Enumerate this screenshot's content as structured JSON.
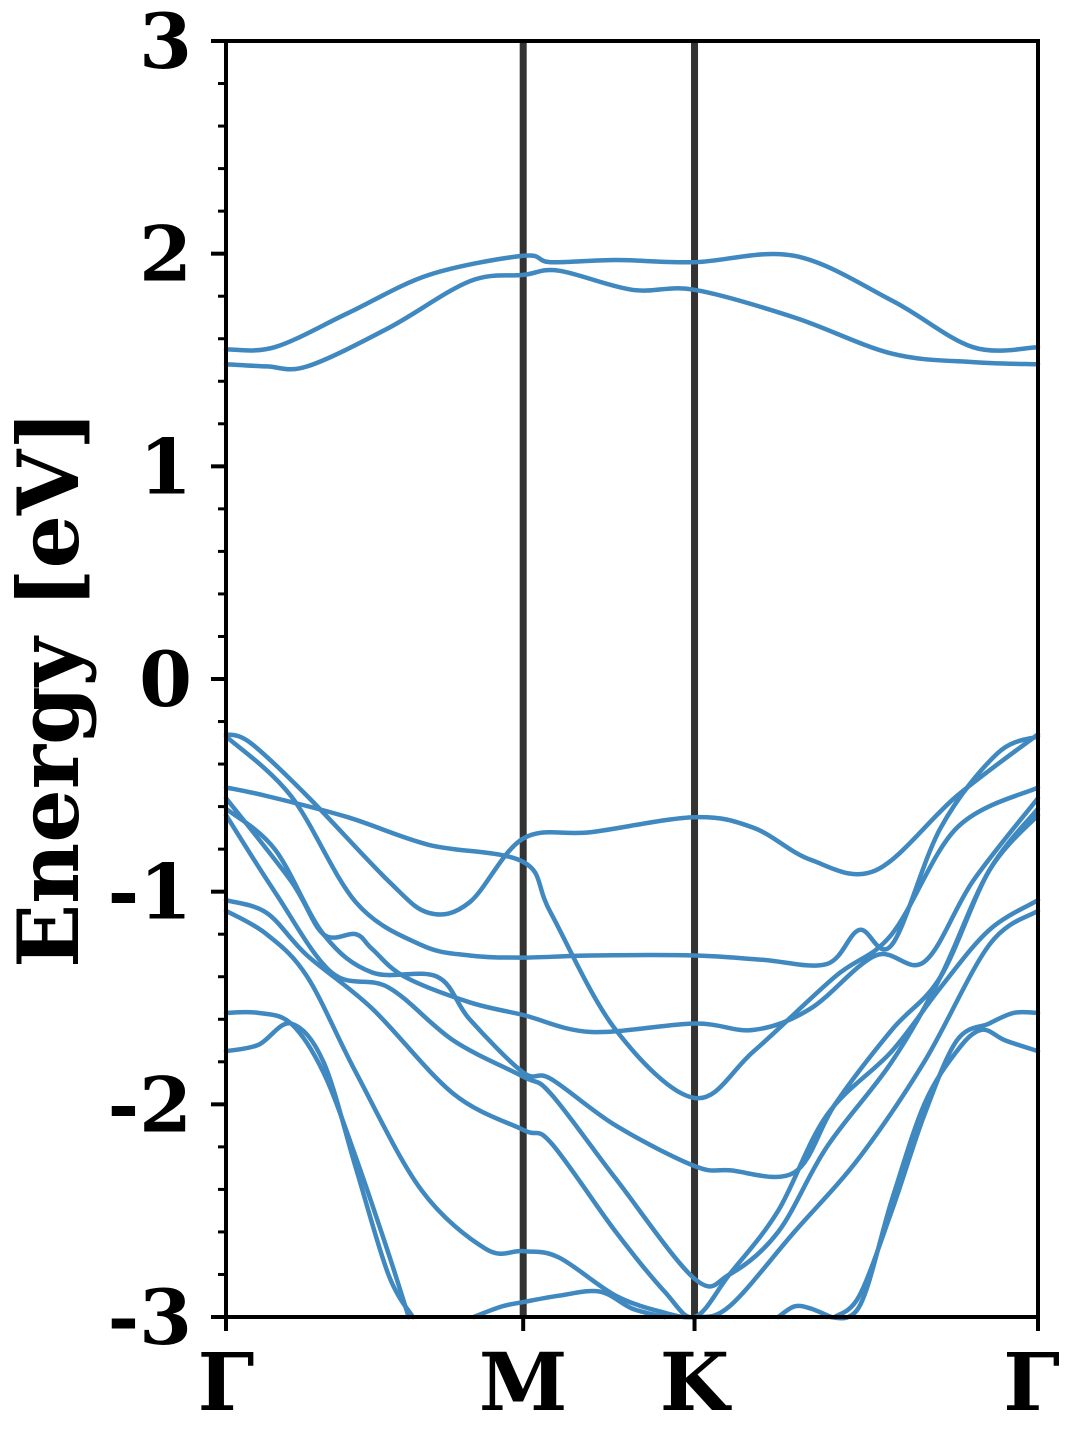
{
  "chart_data": {
    "type": "line",
    "ylabel": "Energy [eV]",
    "xlabel": "",
    "ylim": [
      -3,
      3
    ],
    "yticks": [
      3,
      2,
      1,
      0,
      -1,
      -2,
      -3
    ],
    "ytick_labels": [
      "3",
      "2",
      "1",
      "0",
      "-1",
      "-2",
      "-3"
    ],
    "k_path": [
      {
        "label": "Γ",
        "x": 0.0
      },
      {
        "label": "M",
        "x": 0.366
      },
      {
        "label": "K",
        "x": 0.577
      },
      {
        "label": "Γ",
        "x": 1.0
      }
    ],
    "grid": false,
    "band_color": "#3f88c0",
    "vline_color": "#333333",
    "series": [
      {
        "x": [
          0.0,
          0.06,
          0.15,
          0.25,
          0.366,
          0.4,
          0.48,
          0.577,
          0.7,
          0.82,
          0.92,
          1.0
        ],
        "values": [
          1.55,
          1.56,
          1.72,
          1.9,
          1.99,
          1.96,
          1.97,
          1.96,
          1.99,
          1.78,
          1.56,
          1.56
        ]
      },
      {
        "x": [
          0.0,
          0.05,
          0.1,
          0.2,
          0.3,
          0.366,
          0.41,
          0.5,
          0.577,
          0.7,
          0.82,
          0.92,
          1.0
        ],
        "values": [
          1.48,
          1.47,
          1.47,
          1.65,
          1.87,
          1.9,
          1.92,
          1.83,
          1.83,
          1.7,
          1.53,
          1.49,
          1.48
        ]
      },
      {
        "x": [
          0.0,
          0.03,
          0.1,
          0.2,
          0.25,
          0.3,
          0.366,
          0.45,
          0.577,
          0.65,
          0.72,
          0.8,
          0.9,
          1.0
        ],
        "values": [
          -0.26,
          -0.3,
          -0.55,
          -0.95,
          -1.1,
          -1.05,
          -0.75,
          -0.72,
          -0.65,
          -0.7,
          -0.85,
          -0.9,
          -0.55,
          -0.26
        ]
      },
      {
        "x": [
          0.0,
          0.08,
          0.16,
          0.24,
          0.3,
          0.366,
          0.45,
          0.577,
          0.66,
          0.74,
          0.78,
          0.82,
          0.88,
          0.95,
          1.0
        ],
        "values": [
          -0.27,
          -0.55,
          -1.05,
          -1.25,
          -1.3,
          -1.31,
          -1.3,
          -1.3,
          -1.32,
          -1.34,
          -1.18,
          -1.25,
          -0.7,
          -0.35,
          -0.27
        ]
      },
      {
        "x": [
          0.0,
          0.05,
          0.15,
          0.25,
          0.366,
          0.4,
          0.48,
          0.577,
          0.65,
          0.75,
          0.82,
          0.9,
          1.0
        ],
        "values": [
          -0.51,
          -0.55,
          -0.65,
          -0.78,
          -0.86,
          -1.1,
          -1.65,
          -1.97,
          -1.75,
          -1.4,
          -1.2,
          -0.7,
          -0.51
        ]
      },
      {
        "x": [
          0.0,
          0.08,
          0.12,
          0.16,
          0.18,
          0.22,
          0.3,
          0.366,
          0.45,
          0.577,
          0.65,
          0.72,
          0.8,
          0.86,
          0.92,
          1.0
        ],
        "values": [
          -0.56,
          -0.95,
          -1.2,
          -1.2,
          -1.27,
          -1.4,
          -1.52,
          -1.58,
          -1.66,
          -1.62,
          -1.65,
          -1.55,
          -1.3,
          -1.33,
          -0.95,
          -0.56
        ]
      },
      {
        "x": [
          0.0,
          0.06,
          0.12,
          0.18,
          0.26,
          0.3,
          0.366,
          0.4,
          0.48,
          0.577,
          0.62,
          0.7,
          0.75,
          0.82,
          0.88,
          0.94,
          1.0
        ],
        "values": [
          -0.61,
          -0.8,
          -1.2,
          -1.38,
          -1.4,
          -1.6,
          -1.85,
          -1.88,
          -2.1,
          -2.29,
          -2.31,
          -2.32,
          -2.0,
          -1.65,
          -1.4,
          -0.9,
          -0.61
        ]
      },
      {
        "x": [
          0.0,
          0.06,
          0.13,
          0.2,
          0.28,
          0.366,
          0.4,
          0.48,
          0.577,
          0.62,
          0.68,
          0.74,
          0.82,
          0.88,
          0.94,
          1.0
        ],
        "values": [
          -0.64,
          -1.0,
          -1.38,
          -1.45,
          -1.7,
          -1.87,
          -1.95,
          -2.35,
          -2.82,
          -2.8,
          -2.6,
          -2.2,
          -1.8,
          -1.4,
          -0.9,
          -0.64
        ]
      },
      {
        "x": [
          0.0,
          0.05,
          0.1,
          0.18,
          0.28,
          0.366,
          0.4,
          0.48,
          0.54,
          0.577,
          0.62,
          0.68,
          0.74,
          0.82,
          0.88,
          0.94,
          1.0
        ],
        "values": [
          -1.04,
          -1.1,
          -1.3,
          -1.55,
          -1.95,
          -2.12,
          -2.18,
          -2.6,
          -2.88,
          -3.0,
          -2.8,
          -2.5,
          -2.05,
          -1.75,
          -1.45,
          -1.18,
          -1.04
        ]
      },
      {
        "x": [
          0.0,
          0.05,
          0.1,
          0.16,
          0.24,
          0.32,
          0.366,
          0.41,
          0.48,
          0.54,
          0.577,
          0.62,
          0.7,
          0.78,
          0.86,
          0.94,
          1.0
        ],
        "values": [
          -1.09,
          -1.2,
          -1.4,
          -1.85,
          -2.4,
          -2.68,
          -2.69,
          -2.72,
          -2.9,
          -2.98,
          -3.0,
          -2.95,
          -2.6,
          -2.25,
          -1.8,
          -1.25,
          -1.09
        ]
      },
      {
        "x": [
          0.0,
          0.04,
          0.08,
          0.12,
          0.16,
          0.2,
          0.225
        ],
        "values": [
          -1.57,
          -1.57,
          -1.62,
          -1.85,
          -2.25,
          -2.7,
          -3.0
        ]
      },
      {
        "x": [
          0.0,
          0.04,
          0.08,
          0.12,
          0.16,
          0.2,
          0.23
        ],
        "values": [
          -1.75,
          -1.72,
          -1.62,
          -1.8,
          -2.3,
          -2.8,
          -3.0
        ]
      },
      {
        "x": [
          0.75,
          0.78,
          0.82,
          0.86,
          0.9,
          0.94,
          0.97,
          1.0
        ],
        "values": [
          -3.0,
          -2.9,
          -2.5,
          -2.05,
          -1.7,
          -1.62,
          -1.57,
          -1.57
        ]
      },
      {
        "x": [
          0.74,
          0.78,
          0.82,
          0.86,
          0.9,
          0.93,
          0.96,
          1.0
        ],
        "values": [
          -3.0,
          -2.95,
          -2.45,
          -2.0,
          -1.75,
          -1.65,
          -1.7,
          -1.75
        ]
      },
      {
        "x": [
          0.305,
          0.34,
          0.366,
          0.41,
          0.46,
          0.5,
          0.54
        ],
        "values": [
          -3.0,
          -2.95,
          -2.93,
          -2.9,
          -2.88,
          -2.96,
          -3.0
        ]
      },
      {
        "x": [
          0.68,
          0.7,
          0.72,
          0.745
        ],
        "values": [
          -3.0,
          -2.95,
          -2.96,
          -3.0
        ]
      }
    ]
  }
}
